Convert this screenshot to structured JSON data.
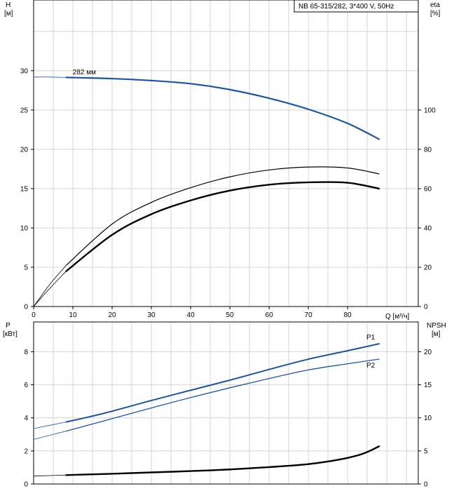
{
  "colors": {
    "blue": "#1f5597",
    "black": "#000000",
    "grid": "#d4d4d4"
  },
  "chart_data": [
    {
      "type": "line",
      "title": "NB 65-315/282, 3*400 V, 50Hz",
      "xlabel": "Q [м³/ч]",
      "xticks": [
        0,
        10,
        20,
        30,
        40,
        50,
        60,
        70,
        80
      ],
      "xlim": [
        0,
        98
      ],
      "left_axis": {
        "label_top": "H",
        "label_unit": "[м]",
        "ticks": [
          0,
          5,
          10,
          15,
          20,
          25,
          30
        ],
        "ylim": [
          0,
          39
        ]
      },
      "right_axis": {
        "label_top": "eta",
        "label_unit": "[%]",
        "ticks": [
          0,
          20,
          40,
          60,
          80,
          100
        ],
        "ylim": [
          0,
          156
        ]
      },
      "grid": true,
      "annotations": [
        {
          "text": "282 мм",
          "x": 5.5,
          "y": 29.2,
          "axis": "left"
        }
      ],
      "series": [
        {
          "role": "H-extension",
          "axis": "left",
          "color": "#1f5597",
          "width": 0.8,
          "x": [
            0,
            4,
            8.3
          ],
          "y": [
            29.2,
            29.2,
            29.15
          ]
        },
        {
          "role": "H",
          "axis": "left",
          "color": "#1f5597",
          "width": 2.2,
          "x": [
            8.3,
            20,
            30,
            40,
            50,
            60,
            70,
            80,
            88
          ],
          "y": [
            29.15,
            29.0,
            28.75,
            28.35,
            27.6,
            26.5,
            25.1,
            23.3,
            21.3
          ]
        },
        {
          "role": "eta-thin-extension",
          "axis": "right",
          "color": "#000000",
          "width": 0.8,
          "x": [
            0,
            4,
            8.3
          ],
          "y": [
            0,
            11,
            21
          ]
        },
        {
          "role": "eta-thin",
          "axis": "right",
          "color": "#000000",
          "width": 1.2,
          "x": [
            8.3,
            20,
            30,
            40,
            50,
            60,
            70,
            80,
            88
          ],
          "y": [
            21,
            42,
            53,
            60.5,
            66,
            69.5,
            71,
            70.5,
            67.5
          ]
        },
        {
          "role": "eta-thick-extension",
          "axis": "right",
          "color": "#000000",
          "width": 0.8,
          "x": [
            0,
            4,
            8.3
          ],
          "y": [
            0,
            9,
            18
          ]
        },
        {
          "role": "eta-thick",
          "axis": "right",
          "color": "#000000",
          "width": 2.4,
          "x": [
            8.3,
            20,
            30,
            40,
            50,
            60,
            70,
            80,
            88
          ],
          "y": [
            18,
            36.5,
            47,
            54,
            59,
            62,
            63.2,
            63,
            60
          ]
        }
      ]
    },
    {
      "type": "line",
      "xlim": [
        0,
        98
      ],
      "left_axis": {
        "label_top": "P",
        "label_unit": "[кВт]",
        "ticks": [
          0,
          2,
          4,
          6,
          8
        ],
        "ylim": [
          0,
          9.8
        ]
      },
      "right_axis": {
        "label_top": "NPSH",
        "label_unit": "[м]",
        "ticks": [
          0,
          5,
          10,
          15,
          20
        ],
        "ylim": [
          0,
          24.5
        ]
      },
      "grid": true,
      "series": [
        {
          "name": "P1",
          "axis": "left",
          "color": "#1f5597",
          "width": 2.0,
          "x": [
            8.3,
            18,
            30,
            40,
            50,
            60,
            70,
            80,
            88
          ],
          "y": [
            3.75,
            4.28,
            5.05,
            5.67,
            6.28,
            6.93,
            7.55,
            8.06,
            8.48
          ]
        },
        {
          "role": "P1-extension",
          "axis": "left",
          "color": "#1f5597",
          "width": 0.8,
          "x": [
            0,
            8.3
          ],
          "y": [
            3.35,
            3.75
          ]
        },
        {
          "name": "P2",
          "axis": "left",
          "color": "#1f5597",
          "width": 1.3,
          "x": [
            8.3,
            20,
            30,
            40,
            50,
            60,
            70,
            80,
            88
          ],
          "y": [
            3.2,
            3.95,
            4.6,
            5.23,
            5.82,
            6.38,
            6.9,
            7.27,
            7.55
          ]
        },
        {
          "role": "P2-extension",
          "axis": "left",
          "color": "#1f5597",
          "width": 0.8,
          "x": [
            0,
            8.3
          ],
          "y": [
            2.7,
            3.2
          ]
        },
        {
          "role": "NPSH",
          "axis": "right",
          "color": "#000000",
          "width": 2.4,
          "x": [
            8.3,
            20,
            30,
            40,
            50,
            60,
            70,
            78,
            83,
            86,
            88
          ],
          "y": [
            1.35,
            1.55,
            1.75,
            1.95,
            2.2,
            2.55,
            3.0,
            3.7,
            4.4,
            5.1,
            5.7
          ]
        },
        {
          "role": "NPSH-extension",
          "axis": "right",
          "color": "#000000",
          "width": 0.8,
          "x": [
            0,
            8.3
          ],
          "y": [
            1.2,
            1.35
          ]
        }
      ]
    }
  ]
}
